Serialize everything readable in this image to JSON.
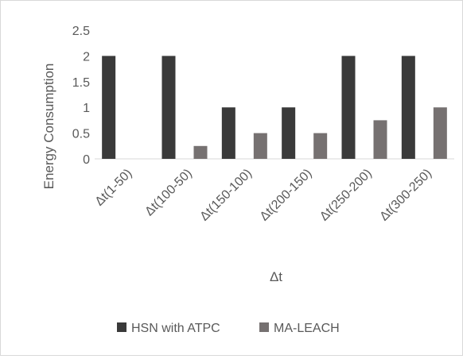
{
  "chart_data": {
    "type": "bar",
    "xlabel": "Δt",
    "ylabel": "Energy Consumption",
    "categories": [
      "Δt(1-50)",
      "Δt(100-50)",
      "Δt(150-100)",
      "Δt(200-150)",
      "Δt(250-200)",
      "Δt(300-250)"
    ],
    "series": [
      {
        "name": "HSN with ATPC",
        "values": [
          2,
          2,
          1,
          1,
          2,
          2
        ],
        "color": "#3a3a3a"
      },
      {
        "name": "MA-LEACH",
        "values": [
          0,
          0.25,
          0.5,
          0.5,
          0.75,
          1
        ],
        "color": "#767171"
      }
    ],
    "ylim": [
      0,
      2.5
    ],
    "yticks": [
      "0",
      "0.5",
      "1",
      "1.5",
      "2",
      "2.5"
    ],
    "grid": false,
    "legend_position": "bottom"
  }
}
